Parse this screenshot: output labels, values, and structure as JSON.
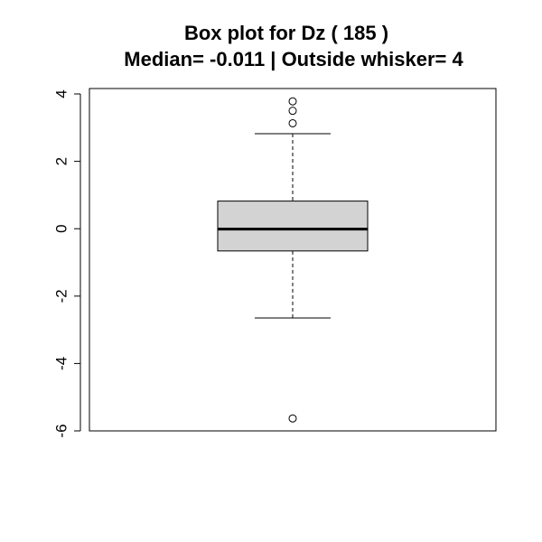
{
  "chart_data": {
    "type": "boxplot",
    "title": "Box plot for Dz ( 185 )",
    "subtitle": "Median= -0.011 | Outside whisker= 4",
    "ylim": [
      -6,
      4
    ],
    "y_ticks": [
      {
        "value": -6,
        "label": "-6"
      },
      {
        "value": -4,
        "label": "-4"
      },
      {
        "value": -2,
        "label": "-2"
      },
      {
        "value": 0,
        "label": "0"
      },
      {
        "value": 2,
        "label": "2"
      },
      {
        "value": 4,
        "label": "4"
      }
    ],
    "box": {
      "lower_whisker": -2.65,
      "q1": -0.66,
      "median": -0.011,
      "q3": 0.82,
      "upper_whisker": 2.82
    },
    "outliers": [
      3.78,
      3.5,
      3.13,
      -5.63
    ],
    "box_fill": "#d3d3d3",
    "grid": false
  }
}
